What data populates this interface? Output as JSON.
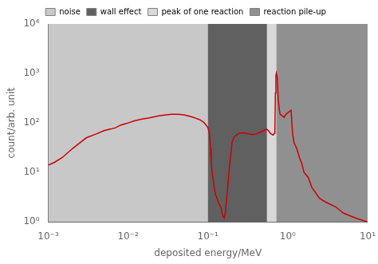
{
  "chart_data": {
    "type": "line",
    "xlabel": "deposited energy/MeV",
    "ylabel": "count/arb. unit",
    "log": true,
    "grid": false,
    "legend": "top",
    "xlim": [
      0.001,
      10
    ],
    "ylim": [
      1,
      10000
    ],
    "xticks": [
      {
        "value": 0.001,
        "label": "10⁻³"
      },
      {
        "value": 0.01,
        "label": "10⁻²"
      },
      {
        "value": 0.1,
        "label": "10⁻¹"
      },
      {
        "value": 1,
        "label": "10⁰"
      },
      {
        "value": 10,
        "label": "10¹"
      }
    ],
    "yticks": [
      {
        "value": 1,
        "label": "10⁰"
      },
      {
        "value": 10,
        "label": "10¹"
      },
      {
        "value": 100,
        "label": "10²"
      },
      {
        "value": 1000,
        "label": "10³"
      },
      {
        "value": 10000,
        "label": "10⁴"
      }
    ],
    "regions": [
      {
        "name": "noise",
        "xmin": 0.001,
        "xmax": 0.1,
        "color": "#c8c8c8"
      },
      {
        "name": "wall effect",
        "xmin": 0.1,
        "xmax": 0.55,
        "color": "#606060"
      },
      {
        "name": "peak of one reaction",
        "xmin": 0.55,
        "xmax": 0.72,
        "color": "#d8d8d8"
      },
      {
        "name": "reaction pile-up",
        "xmin": 0.72,
        "xmax": 10,
        "color": "#909090"
      }
    ],
    "color": "#cc0000",
    "x": [
      0.001,
      0.0012,
      0.0015,
      0.002,
      0.0025,
      0.003,
      0.004,
      0.005,
      0.006,
      0.007,
      0.008,
      0.009,
      0.01,
      0.012,
      0.015,
      0.018,
      0.02,
      0.025,
      0.03,
      0.035,
      0.04,
      0.045,
      0.05,
      0.055,
      0.06,
      0.065,
      0.07,
      0.075,
      0.08,
      0.085,
      0.09,
      0.095,
      0.1,
      0.105,
      0.108,
      0.11,
      0.115,
      0.12,
      0.125,
      0.13,
      0.135,
      0.14,
      0.145,
      0.148,
      0.15,
      0.155,
      0.16,
      0.165,
      0.17,
      0.175,
      0.18,
      0.185,
      0.19,
      0.195,
      0.2,
      0.21,
      0.22,
      0.23,
      0.24,
      0.25,
      0.27,
      0.3,
      0.33,
      0.36,
      0.4,
      0.45,
      0.5,
      0.52,
      0.54,
      0.55,
      0.56,
      0.57,
      0.58,
      0.59,
      0.6,
      0.62,
      0.64,
      0.65,
      0.66,
      0.67,
      0.68,
      0.69,
      0.7,
      0.71,
      0.72,
      0.74,
      0.76,
      0.78,
      0.8,
      0.85,
      0.9,
      0.95,
      1.0,
      1.05,
      1.1,
      1.15,
      1.2,
      1.3,
      1.4,
      1.5,
      1.6,
      1.8,
      2.0,
      2.5,
      3.0,
      4.0,
      5.0,
      7.0,
      10.0
    ],
    "values": [
      14,
      16,
      20,
      30,
      40,
      50,
      60,
      70,
      75,
      80,
      90,
      95,
      100,
      110,
      120,
      125,
      130,
      140,
      145,
      150,
      150,
      148,
      145,
      140,
      135,
      130,
      125,
      120,
      115,
      108,
      100,
      90,
      80,
      60,
      30,
      15,
      8,
      5,
      3.5,
      3,
      2.5,
      2.2,
      2.0,
      1.8,
      1.5,
      1.3,
      1.2,
      1.5,
      2.5,
      4,
      7,
      12,
      18,
      25,
      40,
      50,
      55,
      58,
      60,
      62,
      63,
      62,
      60,
      58,
      60,
      65,
      70,
      72,
      75,
      75,
      72,
      70,
      68,
      65,
      63,
      60,
      58,
      57,
      58,
      60,
      62,
      70,
      400,
      900,
      1000,
      800,
      300,
      200,
      150,
      140,
      130,
      150,
      160,
      170,
      180,
      60,
      40,
      30,
      20,
      15,
      10,
      8,
      5,
      3,
      2.5,
      2,
      1.5,
      1.2,
      1.0
    ]
  }
}
